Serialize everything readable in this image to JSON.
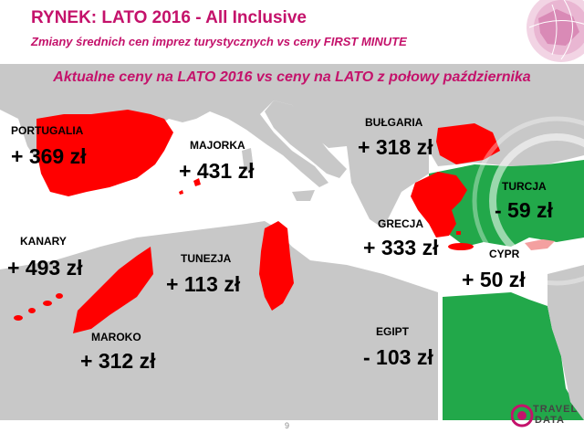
{
  "header": {
    "title": "RYNEK: LATO 2016 - All Inclusive",
    "subtitle": "Zmiany średnich cen imprez turystycznych vs ceny FIRST MINUTE"
  },
  "headline": "Aktualne ceny na LATO 2016  vs  ceny na LATO z połowy października",
  "colors": {
    "accent": "#c4126b",
    "increase": "#ff0000",
    "decrease": "#22a84a",
    "small_increase": "#f4a0a0",
    "land": "#c8c8c8",
    "sea": "#ffffff"
  },
  "countries": {
    "portugalia": {
      "name": "PORTUGALIA",
      "value": "+ 369 zł"
    },
    "majorka": {
      "name": "MAJORKA",
      "value": "+ 431 zł"
    },
    "bulgaria": {
      "name": "BUŁGARIA",
      "value": "+ 318 zł"
    },
    "turcja": {
      "name": "TURCJA",
      "value": "- 59 zł"
    },
    "grecja": {
      "name": "GRECJA",
      "value": "+ 333 zł"
    },
    "cypr": {
      "name": "CYPR",
      "value": "+ 50 zł"
    },
    "kanary": {
      "name": "KANARY",
      "value": "+ 493 zł"
    },
    "tunezja": {
      "name": "TUNEZJA",
      "value": "+ 113 zł"
    },
    "maroko": {
      "name": "MAROKO",
      "value": "+ 312 zł"
    },
    "egipt": {
      "name": "EGIPT",
      "value": "- 103 zł"
    }
  },
  "footer": {
    "page": "9",
    "logo_line1": "TRAVEL",
    "logo_line2": "DATA"
  }
}
